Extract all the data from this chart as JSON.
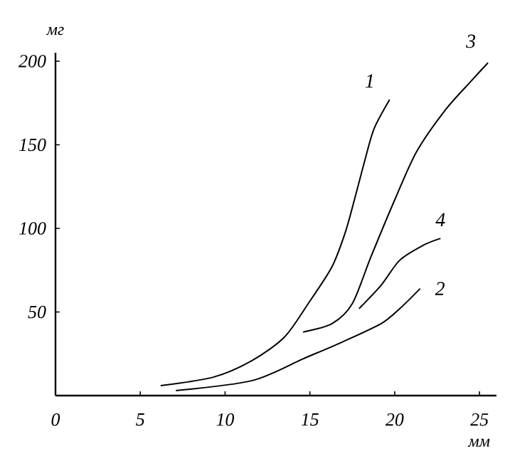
{
  "chart_data": {
    "type": "line",
    "xlabel": "мм",
    "ylabel": "мг",
    "xlim": [
      0,
      26
    ],
    "ylim": [
      0,
      205
    ],
    "xticks": [
      0,
      5,
      10,
      15,
      20,
      25
    ],
    "yticks": [
      50,
      100,
      150,
      200
    ],
    "grid": false,
    "marker": "none",
    "line_style": "solid",
    "series": [
      {
        "name": "1",
        "color": "#000000",
        "x": [
          6.2,
          9.3,
          11.6,
          13.5,
          14.9,
          16.3,
          17.1,
          17.7,
          18.3,
          18.8,
          19.7
        ],
        "values": [
          6,
          11,
          21,
          35,
          55,
          77,
          98,
          120,
          143,
          160,
          177
        ]
      },
      {
        "name": "2",
        "color": "#000000",
        "x": [
          7.1,
          11.6,
          14.6,
          16.9,
          19.2,
          20.3,
          21.5
        ],
        "values": [
          3,
          9,
          22,
          32,
          43,
          52,
          64
        ]
      },
      {
        "name": "3",
        "color": "#000000",
        "x": [
          14.6,
          16.3,
          17.5,
          18.6,
          20.0,
          21.3,
          23.0,
          24.5,
          25.5
        ],
        "values": [
          38,
          43,
          55,
          83,
          117,
          146,
          171,
          188,
          199
        ]
      },
      {
        "name": "4",
        "color": "#000000",
        "x": [
          17.9,
          19.2,
          20.3,
          21.7,
          22.7
        ],
        "values": [
          52,
          66,
          81,
          90,
          94
        ]
      }
    ]
  }
}
